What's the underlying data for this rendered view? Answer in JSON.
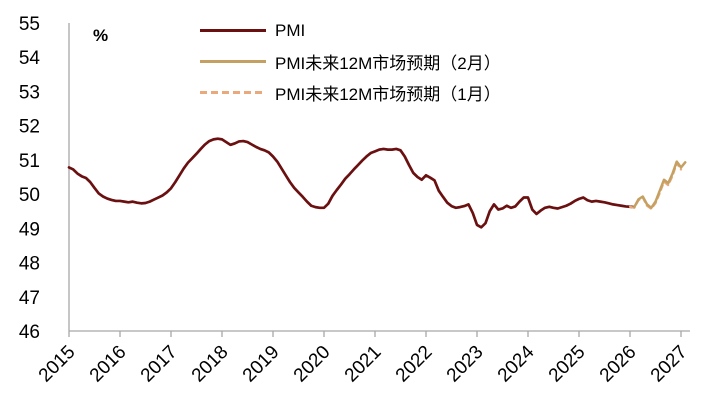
{
  "chart": {
    "unit_label": "%"
  },
  "legend": {
    "items": [
      {
        "label": "PMI",
        "color": "#6b1010",
        "style": "solid"
      },
      {
        "label": "PMI未来12M市场预期（2月）",
        "color": "#c5a063",
        "style": "solid"
      },
      {
        "label": "PMI未来12M市场预期（1月）",
        "color": "#e9a97a",
        "style": "dashed"
      }
    ]
  },
  "chart_data": {
    "type": "line",
    "title": "",
    "xlabel": "",
    "ylabel": "%",
    "grid": false,
    "legend_position": "top-center",
    "xlim": [
      2015,
      2027.15
    ],
    "ylim": [
      46,
      55
    ],
    "x_ticks": [
      2015,
      2016,
      2017,
      2018,
      2019,
      2020,
      2021,
      2022,
      2023,
      2024,
      2025,
      2026,
      2027
    ],
    "y_ticks": [
      46,
      47,
      48,
      49,
      50,
      51,
      52,
      53,
      54,
      55
    ],
    "step_years": 0.0833333,
    "axis_color": "#a8a8a8",
    "series": [
      {
        "name": "PMI",
        "color": "#6b1010",
        "dash": null,
        "width": 2.7,
        "start": 2015.0,
        "values": [
          50.78,
          50.72,
          50.6,
          50.52,
          50.47,
          50.35,
          50.18,
          50.02,
          49.93,
          49.87,
          49.83,
          49.8,
          49.8,
          49.78,
          49.76,
          49.78,
          49.75,
          49.73,
          49.74,
          49.78,
          49.84,
          49.9,
          49.96,
          50.05,
          50.17,
          50.35,
          50.55,
          50.75,
          50.92,
          51.05,
          51.18,
          51.32,
          51.45,
          51.55,
          51.6,
          51.62,
          51.6,
          51.52,
          51.44,
          51.48,
          51.54,
          51.55,
          51.52,
          51.45,
          51.38,
          51.32,
          51.28,
          51.22,
          51.1,
          50.95,
          50.75,
          50.55,
          50.35,
          50.18,
          50.05,
          49.92,
          49.78,
          49.66,
          49.62,
          49.6,
          49.6,
          49.72,
          49.95,
          50.12,
          50.28,
          50.45,
          50.58,
          50.72,
          50.85,
          50.98,
          51.1,
          51.2,
          51.25,
          51.3,
          51.32,
          51.3,
          51.3,
          51.32,
          51.28,
          51.1,
          50.85,
          50.62,
          50.5,
          50.42,
          50.55,
          50.48,
          50.4,
          50.1,
          49.92,
          49.75,
          49.65,
          49.6,
          49.62,
          49.65,
          49.7,
          49.45,
          49.1,
          49.03,
          49.15,
          49.5,
          49.7,
          49.55,
          49.58,
          49.66,
          49.6,
          49.64,
          49.78,
          49.9,
          49.9,
          49.55,
          49.42,
          49.52,
          49.6,
          49.63,
          49.6,
          49.58,
          49.62,
          49.66,
          49.72,
          49.8,
          49.86,
          49.9,
          49.82,
          49.78,
          49.8,
          49.78,
          49.76,
          49.73,
          49.7,
          49.68,
          49.66,
          49.64,
          49.63,
          49.62
        ]
      },
      {
        "name": "PMI未来12M市场预期（1月）",
        "color": "#e9a97a",
        "dash": "5 4",
        "width": 2.2,
        "start": 2026.0,
        "values": [
          49.63,
          49.6,
          49.82,
          49.9,
          49.66,
          49.57,
          49.73,
          50.03,
          50.36,
          50.26,
          50.53,
          50.9,
          50.72
        ]
      },
      {
        "name": "PMI未来12M市场预期（2月）",
        "color": "#c5a063",
        "dash": null,
        "width": 2.5,
        "start": 2026.0833333,
        "values": [
          49.62,
          49.85,
          49.93,
          49.7,
          49.6,
          49.78,
          50.1,
          50.42,
          50.32,
          50.6,
          50.95,
          50.78,
          50.93
        ]
      }
    ]
  }
}
